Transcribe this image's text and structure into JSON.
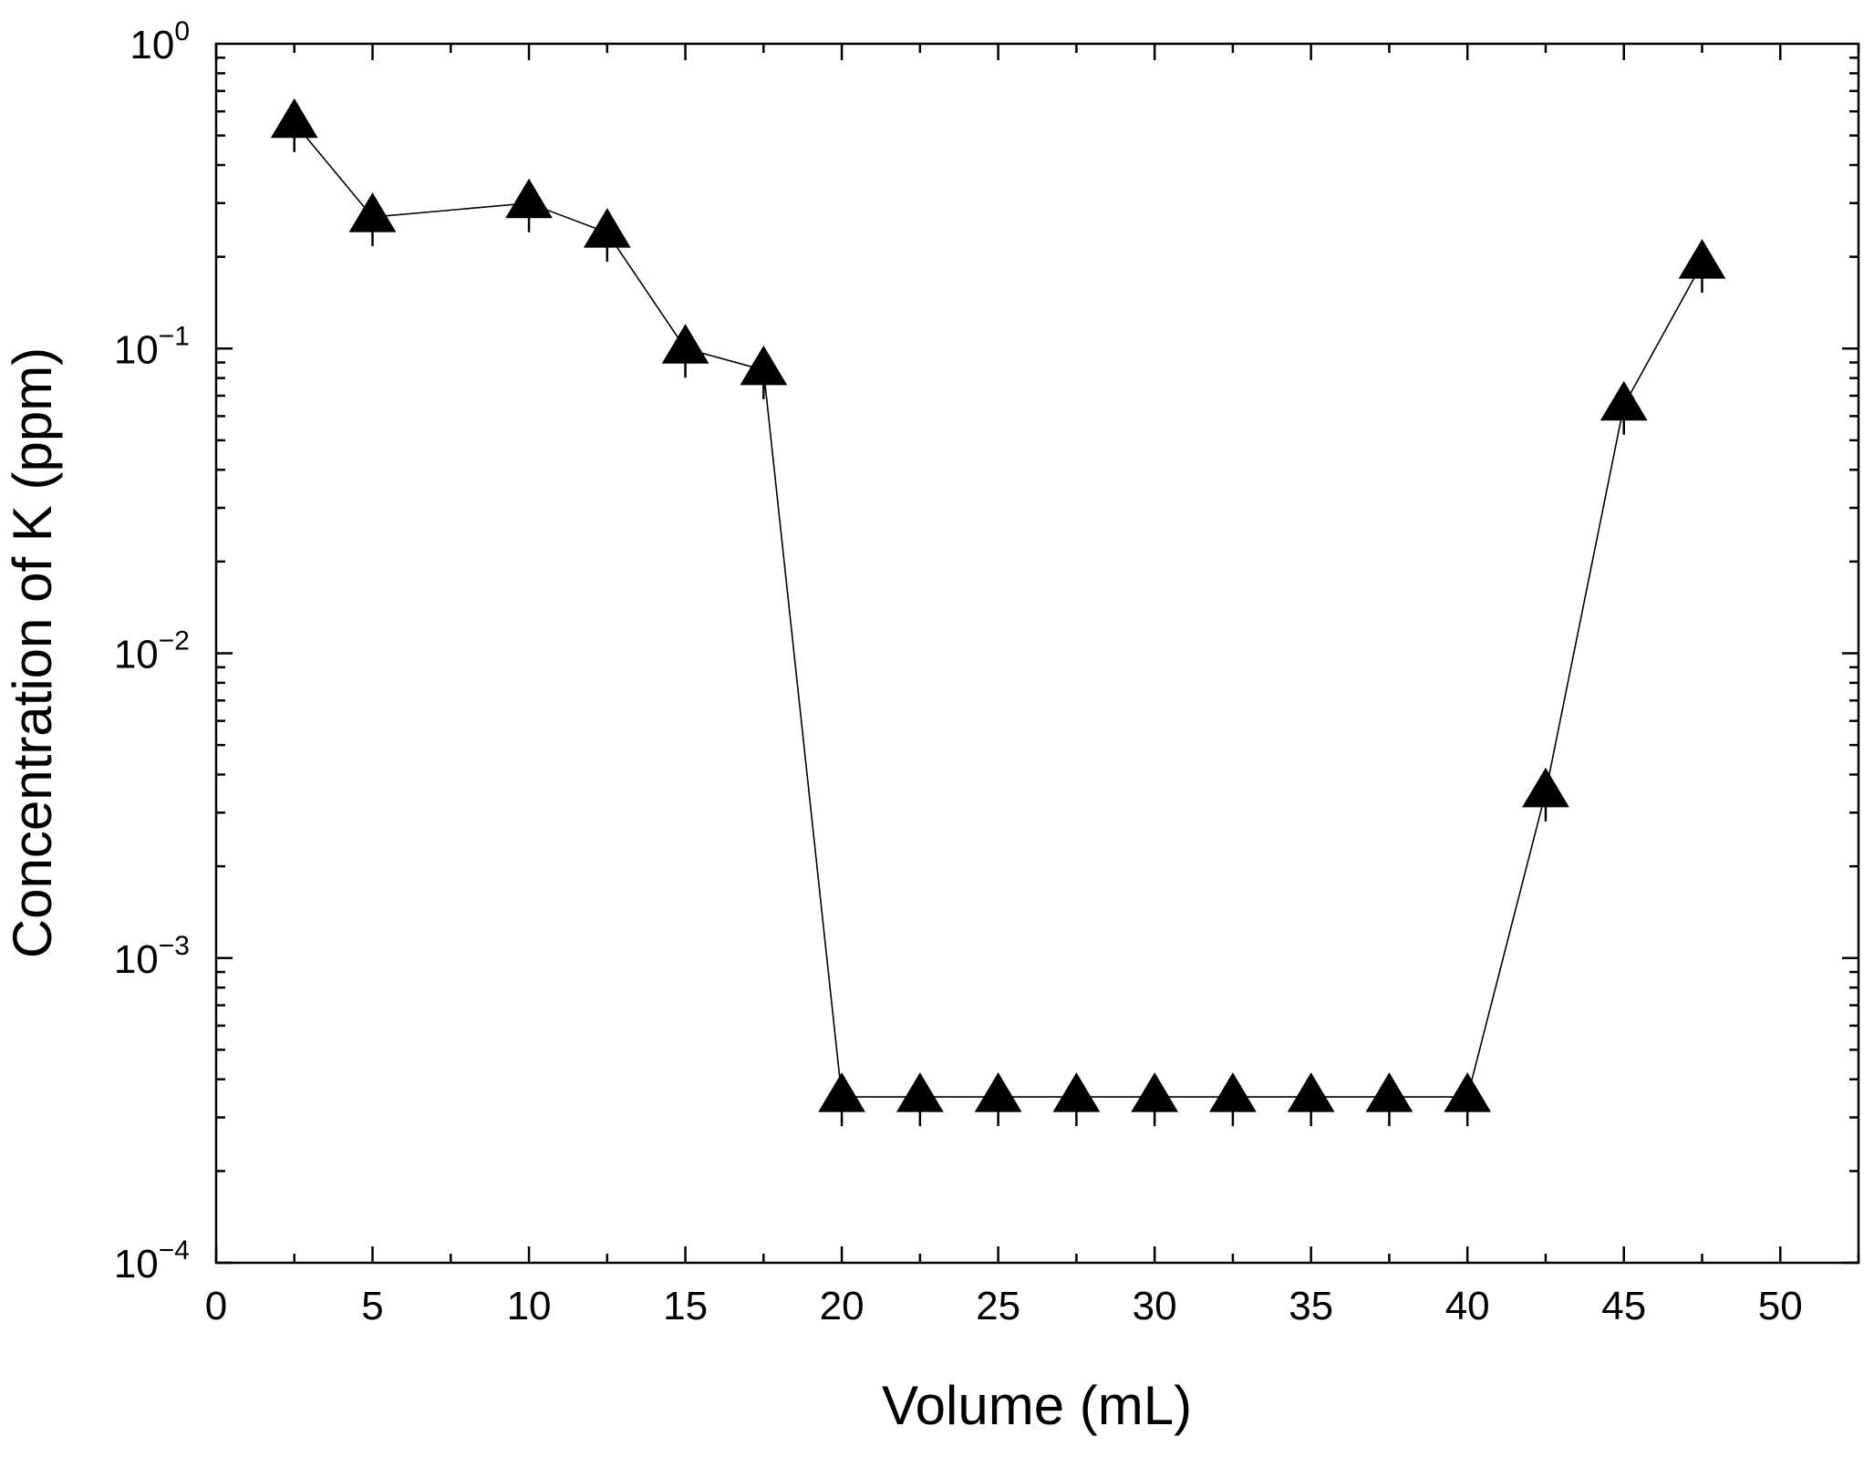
{
  "chart_data": {
    "type": "line",
    "xlabel": "Volume (mL)",
    "ylabel": "Concentration of K (ppm)",
    "xlim": [
      0,
      52.5
    ],
    "ylim": [
      0.0001,
      1
    ],
    "yscale": "log",
    "grid": false,
    "legend": "none",
    "x_ticks": [
      0,
      5,
      10,
      15,
      20,
      25,
      30,
      35,
      40,
      45,
      50
    ],
    "y_ticks": [
      {
        "value": 1,
        "base": "10",
        "exp": "0"
      },
      {
        "value": 0.1,
        "base": "10",
        "exp": "−1"
      },
      {
        "value": 0.01,
        "base": "10",
        "exp": "−2"
      },
      {
        "value": 0.001,
        "base": "10",
        "exp": "−3"
      },
      {
        "value": 0.0001,
        "base": "10",
        "exp": "−4"
      }
    ],
    "marker": "triangle",
    "color": "#000000",
    "series": [
      {
        "x": [
          2.5,
          5,
          10,
          12.5,
          15,
          17.5,
          20,
          22.5,
          25,
          27.5,
          30,
          32.5,
          35,
          37.5,
          40,
          42.5,
          45,
          47.5
        ],
        "y": [
          0.55,
          0.27,
          0.3,
          0.24,
          0.1,
          0.085,
          0.00035,
          0.00035,
          0.00035,
          0.00035,
          0.00035,
          0.00035,
          0.00035,
          0.00035,
          0.00035,
          0.0035,
          0.065,
          0.19
        ]
      }
    ]
  }
}
